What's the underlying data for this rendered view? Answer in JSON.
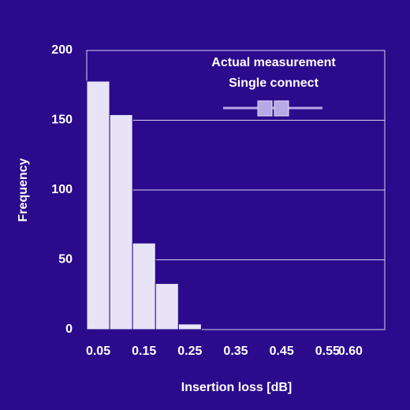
{
  "chart_data": {
    "type": "histogram",
    "legend_title": "Actual measurement",
    "series": [
      {
        "name": "Single connect",
        "color": "#e8e3f6",
        "values": [
          178,
          154,
          62,
          33,
          4
        ]
      }
    ],
    "bins": [
      0.025,
      0.075,
      0.125,
      0.175,
      0.225,
      0.275
    ],
    "x_label": "Insertion loss  [dB]",
    "y_label": "Frequency",
    "xlim": [
      0.025,
      0.675
    ],
    "xticks": [
      0.05,
      0.15,
      0.25,
      0.35,
      0.45,
      0.55,
      {
        "value": 0.6,
        "label": "0.60"
      }
    ],
    "ylim": [
      0,
      200
    ],
    "yticks": [
      0,
      50,
      100,
      150,
      200
    ],
    "grid": true,
    "legend": "top-right"
  }
}
